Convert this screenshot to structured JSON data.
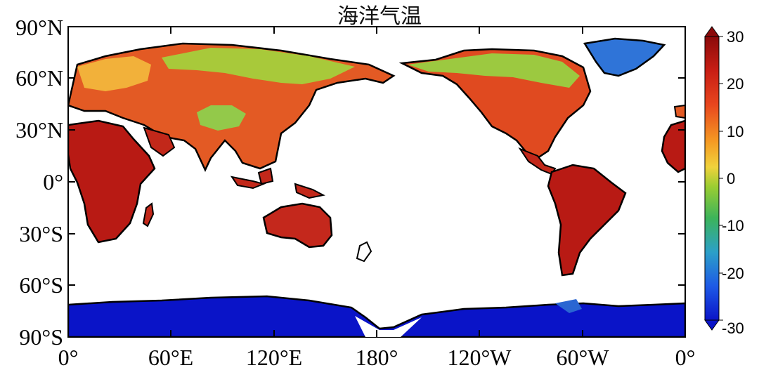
{
  "title": "海洋气温",
  "map": {
    "projection": "equirectangular",
    "central_longitude": 180,
    "lat_labels": [
      "90°N",
      "60°N",
      "30°N",
      "0°",
      "30°S",
      "60°S",
      "90°S"
    ],
    "lon_labels": [
      "0°",
      "60°E",
      "120°E",
      "180°",
      "120°W",
      "60°W",
      "0°"
    ],
    "lat_ticks": [
      90,
      60,
      30,
      0,
      -30,
      -60,
      -90
    ],
    "lon_ticks": [
      0,
      60,
      120,
      180,
      240,
      300,
      360
    ],
    "coastline_color": "#000000",
    "ocean_color": "#ffffff"
  },
  "colorbar": {
    "min": -30,
    "max": 30,
    "tick_labels": [
      "30",
      "20",
      "10",
      "0",
      "-10",
      "-20",
      "-30"
    ],
    "tick_values": [
      30,
      20,
      10,
      0,
      -10,
      -20,
      -30
    ],
    "extend": "both",
    "colors": [
      "#0a14c8",
      "#1e5ae6",
      "#2ca0c8",
      "#3cb45a",
      "#9acd32",
      "#f0d23c",
      "#f59a23",
      "#e8461e",
      "#c81e14",
      "#8b0a0a"
    ]
  }
}
